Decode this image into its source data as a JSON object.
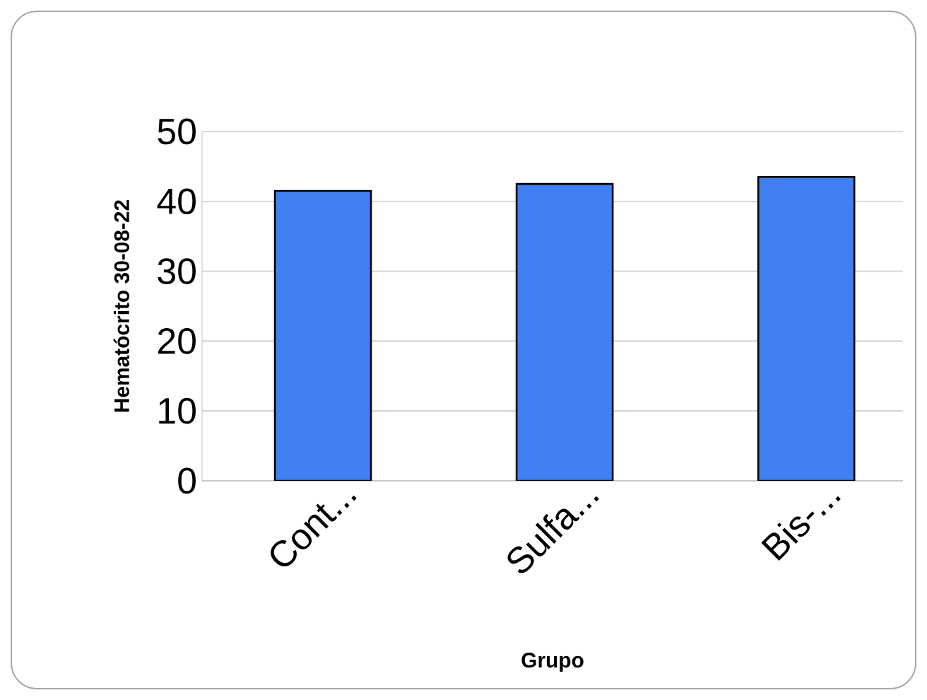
{
  "chart_data": {
    "type": "bar",
    "xlabel": "Grupo",
    "ylabel": "Hematócrito 30-08-22",
    "categories": [
      "Cont...",
      "Sulfa...",
      "Bis-..."
    ],
    "values": [
      41.5,
      42.5,
      43.5
    ],
    "color": "#4080f0",
    "ylim": [
      0,
      50
    ],
    "yticks": [
      0,
      10,
      20,
      30,
      40,
      50
    ],
    "grid": "y"
  }
}
